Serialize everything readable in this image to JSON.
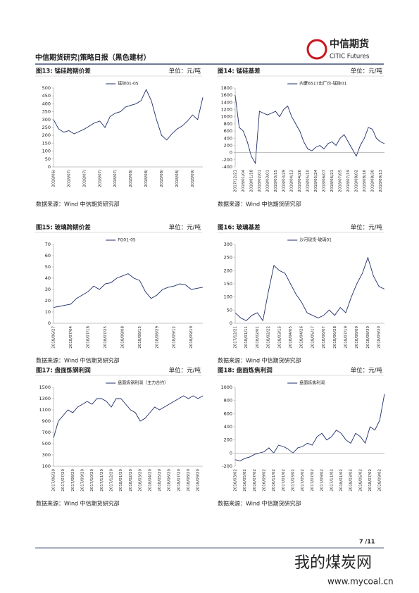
{
  "header": {
    "title": "中信期货研究|策略日报（黑色建材）",
    "logo_cn": "中信期货",
    "logo_en": "CITIC Futures"
  },
  "chart_data": [
    {
      "type": "line",
      "caption": "图13: 锰硅跨期价差",
      "unit": "单位：元/吨",
      "source": "数据来源：Wind  中信期货研究部",
      "categories": [
        "2018/06/",
        null,
        null,
        "2018/07/",
        null,
        null,
        "2018/07/",
        null,
        null,
        "2018/07/",
        null,
        null,
        "2018/07/",
        null,
        null,
        "2018/08/",
        null,
        null,
        "2018/08/",
        null,
        null,
        "2018/08/",
        null,
        null,
        "2018/08/",
        null,
        null,
        "2018/09/",
        null,
        null
      ],
      "series": [
        {
          "name": "锰硅01-05",
          "color": "#1f2d6b",
          "values": [
            300,
            240,
            220,
            230,
            210,
            225,
            240,
            260,
            280,
            290,
            250,
            320,
            340,
            350,
            380,
            390,
            400,
            420,
            490,
            420,
            300,
            200,
            170,
            210,
            240,
            260,
            290,
            330,
            300,
            440
          ]
        }
      ],
      "ylim": [
        0,
        500
      ],
      "yticks": [
        0,
        50,
        100,
        150,
        200,
        250,
        300,
        350,
        400,
        450,
        500
      ]
    },
    {
      "type": "line",
      "caption": "图14: 锰硅基差",
      "unit": "单位：元/吨",
      "source": "数据来源：Wind  中信期货研究部",
      "categories": [
        "2017/12/21",
        null,
        "2018/01/04",
        null,
        "2018/01/18",
        null,
        "2018/02/01",
        null,
        "2018/03/01",
        null,
        "2018/03/15",
        null,
        "2018/03/29",
        null,
        "2018/04/12",
        null,
        "2018/04/26",
        null,
        "2018/05/10",
        null,
        "2018/05/24",
        null,
        "2018/06/07",
        null,
        "2018/06/21",
        null,
        "2018/07/05",
        null,
        "2018/07/19",
        null,
        "2018/08/02",
        null,
        "2018/08/16",
        null,
        "2018/08/30",
        null,
        "2018/09/13",
        null
      ],
      "series": [
        {
          "name": "内蒙6517出厂价-锰硅01",
          "color": "#1f2d6b",
          "values": [
            1600,
            700,
            600,
            300,
            -100,
            -300,
            1150,
            1100,
            1050,
            1100,
            1150,
            1000,
            1200,
            1300,
            1000,
            800,
            600,
            300,
            100,
            50,
            150,
            200,
            100,
            250,
            300,
            200,
            400,
            500,
            300,
            100,
            -100,
            200,
            400,
            700,
            650,
            400,
            300,
            250
          ]
        }
      ],
      "ylim": [
        -400,
        1800
      ],
      "yticks": [
        -400,
        -200,
        0,
        200,
        400,
        600,
        800,
        1000,
        1200,
        1400,
        1600,
        1800
      ]
    },
    {
      "type": "line",
      "caption": "图15: 玻璃跨期价差",
      "unit": "单位：元/吨",
      "source": "数据来源：Wind  中信期货研究部",
      "categories": [
        "2018/06/27",
        null,
        null,
        "2018/07/04",
        null,
        null,
        "2018/07/18",
        null,
        null,
        "2018/07/25",
        null,
        null,
        "2018/08/08",
        null,
        null,
        "2018/08/15",
        null,
        null,
        "2018/08/29",
        null,
        null,
        "2018/09/12",
        null,
        null,
        "2018/09/19",
        null,
        null
      ],
      "series": [
        {
          "name": "FG01-05",
          "color": "#1f2d6b",
          "values": [
            14,
            15,
            16,
            17,
            22,
            25,
            28,
            33,
            30,
            35,
            36,
            40,
            42,
            44,
            40,
            38,
            28,
            22,
            25,
            30,
            32,
            33,
            35,
            34,
            30,
            31,
            32
          ]
        }
      ],
      "ylim": [
        0,
        70
      ],
      "yticks": [
        0,
        10,
        20,
        30,
        40,
        50,
        60,
        70
      ]
    },
    {
      "type": "line",
      "caption": "图16: 玻璃基差",
      "unit": "单位：元/吨",
      "source": "数据来源：Wind  中信期货研究部",
      "categories": [
        "2017/12/21",
        null,
        "2018/01/11",
        null,
        "2018/02/01",
        null,
        "2018/02/22",
        null,
        "2018/03/15",
        null,
        "2018/04/05",
        null,
        "2018/04/26",
        null,
        "2018/05/17",
        null,
        "2018/06/07",
        null,
        "2018/06/28",
        null,
        "2018/07/19",
        null,
        "2018/08/09",
        null,
        "2018/08/30",
        null,
        "2018/09/20",
        null
      ],
      "series": [
        {
          "name": "沙河现货-玻璃01",
          "color": "#1f2d6b",
          "values": [
            40,
            20,
            10,
            30,
            40,
            10,
            120,
            220,
            200,
            190,
            150,
            110,
            80,
            40,
            30,
            20,
            30,
            50,
            30,
            60,
            40,
            100,
            150,
            190,
            250,
            180,
            140,
            130
          ]
        }
      ],
      "ylim": [
        0,
        300
      ],
      "yticks": [
        0,
        50,
        100,
        150,
        200,
        250,
        300
      ]
    },
    {
      "type": "line",
      "caption": "图17: 盘面炼钢利润",
      "unit": "单位：元/吨",
      "source": "数据来源：Wind  中信期货研究部",
      "categories": [
        "2017/06/20",
        null,
        "2017/07/20",
        null,
        "2017/08/20",
        null,
        "2017/09/20",
        null,
        "2017/10/20",
        null,
        "2017/11/20",
        null,
        "2017/12/20",
        null,
        "2018/01/20",
        null,
        "2018/02/20",
        null,
        "2018/03/20",
        null,
        "2018/04/20",
        null,
        "2018/05/20",
        null,
        "2018/06/20",
        null,
        "2018/07/20",
        null,
        "2018/08/20",
        null,
        "2018/09/20",
        null
      ],
      "series": [
        {
          "name": "盘面炼钢利润（主力合约）",
          "color": "#1f2d6b",
          "values": [
            600,
            900,
            1000,
            1100,
            1050,
            1150,
            1200,
            1250,
            1200,
            1300,
            1300,
            1250,
            1150,
            1300,
            1300,
            1200,
            1100,
            1050,
            900,
            950,
            1050,
            1150,
            1100,
            1150,
            1200,
            1250,
            1300,
            1350,
            1300,
            1350,
            1300,
            1350
          ]
        }
      ],
      "ylim": [
        100,
        1500
      ],
      "yticks": [
        100,
        300,
        500,
        700,
        900,
        1100,
        1300,
        1500
      ]
    },
    {
      "type": "line",
      "caption": "图18: 盘面炼焦利润",
      "unit": "单位：元/吨",
      "source": "数据来源：Wind  中信期货研究部",
      "categories": [
        "2016/03/02",
        null,
        "2016/05/02",
        null,
        "2016/07/02",
        null,
        "2016/09/02",
        null,
        "2016/11/02",
        null,
        "2017/01/02",
        null,
        "2017/03/02",
        null,
        "2017/05/02",
        null,
        "2017/07/02",
        null,
        "2017/09/02",
        null,
        "2017/11/02",
        null,
        "2018/01/02",
        null,
        "2018/03/02",
        null,
        "2018/05/02",
        null,
        "2018/07/02",
        null,
        "2018/09/02",
        null
      ],
      "series": [
        {
          "name": "盘面炼焦利润",
          "color": "#1f2d6b",
          "values": [
            -100,
            -120,
            -80,
            -60,
            -20,
            0,
            20,
            80,
            0,
            120,
            100,
            60,
            0,
            80,
            100,
            150,
            120,
            250,
            300,
            200,
            250,
            350,
            300,
            200,
            150,
            300,
            250,
            150,
            400,
            350,
            500,
            900
          ]
        }
      ],
      "ylim": [
        -200,
        1000
      ],
      "yticks": [
        -200,
        0,
        200,
        400,
        600,
        800,
        1000
      ]
    }
  ],
  "footer": {
    "page": "7 /11"
  },
  "watermark": {
    "cn": "我的煤炭网",
    "url": "www.mycoal.cn"
  }
}
